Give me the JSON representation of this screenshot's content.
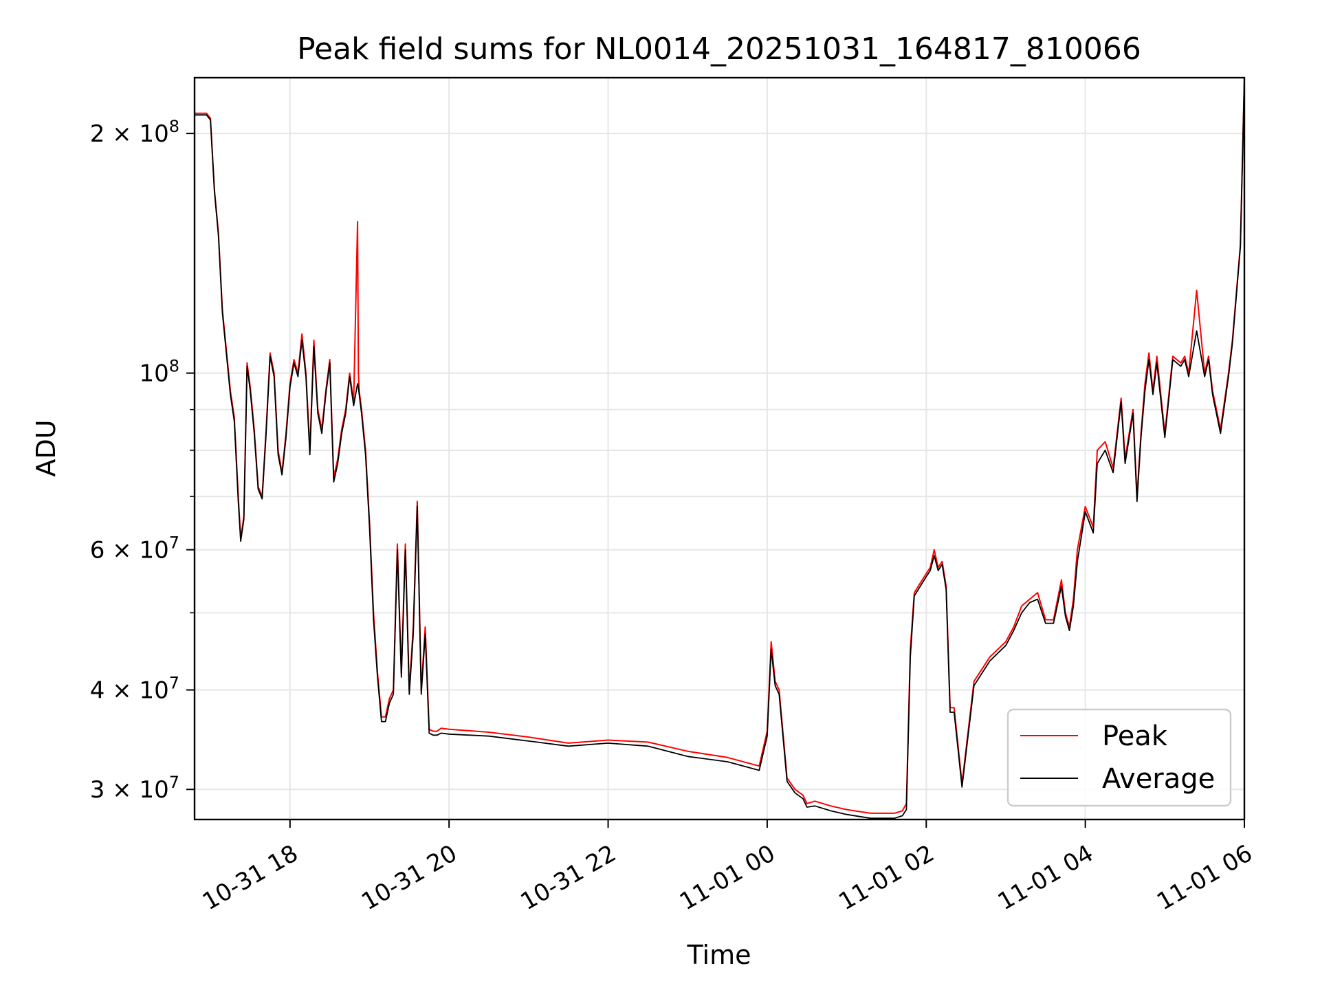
{
  "chart_data": {
    "type": "line",
    "title": "Peak field sums for NL0014_20251031_164817_810066",
    "xlabel": "Time",
    "ylabel": "ADU",
    "yscale": "log",
    "xlim_hours": [
      16.8,
      30.0
    ],
    "ylim": [
      27500000,
      235000000
    ],
    "x_unit": "hours since 2025-10-31 00:00",
    "x_ticks": [
      {
        "value": 18,
        "label": "10-31 18"
      },
      {
        "value": 20,
        "label": "10-31 20"
      },
      {
        "value": 22,
        "label": "10-31 22"
      },
      {
        "value": 24,
        "label": "11-01 00"
      },
      {
        "value": 26,
        "label": "11-01 02"
      },
      {
        "value": 28,
        "label": "11-01 04"
      },
      {
        "value": 30,
        "label": "11-01 06"
      }
    ],
    "y_ticks": [
      {
        "value": 30000000,
        "mant": "3",
        "exp": "7"
      },
      {
        "value": 40000000,
        "mant": "4",
        "exp": "7"
      },
      {
        "value": 60000000,
        "mant": "6",
        "exp": "7"
      },
      {
        "value": 100000000,
        "mant": "",
        "exp": "8"
      },
      {
        "value": 200000000,
        "mant": "2",
        "exp": "8"
      }
    ],
    "y_minor_ticks": [
      50000000,
      70000000,
      80000000,
      90000000
    ],
    "legend": {
      "position": "lower-right"
    },
    "series": [
      {
        "name": "Peak",
        "color": "#ff0000",
        "x": [
          16.8,
          16.95,
          17.0,
          17.05,
          17.1,
          17.15,
          17.25,
          17.3,
          17.35,
          17.38,
          17.42,
          17.46,
          17.5,
          17.55,
          17.6,
          17.65,
          17.7,
          17.75,
          17.8,
          17.85,
          17.9,
          17.95,
          18.0,
          18.05,
          18.1,
          18.15,
          18.2,
          18.25,
          18.3,
          18.35,
          18.4,
          18.45,
          18.5,
          18.55,
          18.6,
          18.65,
          18.7,
          18.75,
          18.8,
          18.85,
          18.86,
          18.87,
          18.9,
          18.95,
          19.0,
          19.05,
          19.1,
          19.15,
          19.2,
          19.25,
          19.3,
          19.35,
          19.4,
          19.45,
          19.5,
          19.55,
          19.6,
          19.65,
          19.7,
          19.75,
          19.8,
          19.85,
          19.9,
          20.0,
          20.5,
          21.0,
          21.5,
          22.0,
          22.5,
          23.0,
          23.5,
          23.9,
          24.0,
          24.05,
          24.1,
          24.15,
          24.25,
          24.35,
          24.45,
          24.5,
          24.6,
          24.8,
          25.0,
          25.3,
          25.6,
          25.7,
          25.75,
          25.8,
          25.85,
          25.95,
          26.0,
          26.05,
          26.1,
          26.15,
          26.2,
          26.25,
          26.3,
          26.35,
          26.45,
          26.6,
          26.8,
          27.0,
          27.1,
          27.2,
          27.3,
          27.4,
          27.5,
          27.6,
          27.7,
          27.75,
          27.8,
          27.85,
          27.9,
          28.0,
          28.1,
          28.15,
          28.25,
          28.35,
          28.45,
          28.5,
          28.6,
          28.65,
          28.7,
          28.75,
          28.8,
          28.85,
          28.9,
          29.0,
          29.1,
          29.2,
          29.25,
          29.3,
          29.4,
          29.5,
          29.55,
          29.6,
          29.7,
          29.8,
          29.85,
          29.95,
          30.0
        ],
        "y": [
          212000000,
          212000000,
          209000000,
          170000000,
          150000000,
          120000000,
          95000000,
          88000000,
          70000000,
          62000000,
          66000000,
          103000000,
          96000000,
          85000000,
          72000000,
          70000000,
          85000000,
          106000000,
          100000000,
          80000000,
          75000000,
          84000000,
          97000000,
          104000000,
          100000000,
          112000000,
          100000000,
          80000000,
          110000000,
          90000000,
          85000000,
          95000000,
          104000000,
          74000000,
          78000000,
          85000000,
          90000000,
          100000000,
          92000000,
          155000000,
          100000000,
          95000000,
          90000000,
          80000000,
          65000000,
          50000000,
          42000000,
          37000000,
          37000000,
          39000000,
          40000000,
          61000000,
          42000000,
          61000000,
          40000000,
          48000000,
          69000000,
          40000000,
          48000000,
          35700000,
          35500000,
          35500000,
          35800000,
          35700000,
          35400000,
          34900000,
          34300000,
          34600000,
          34400000,
          33500000,
          32900000,
          32100000,
          35500000,
          46000000,
          41000000,
          40000000,
          31000000,
          30000000,
          29500000,
          28800000,
          29000000,
          28600000,
          28300000,
          28000000,
          28000000,
          28200000,
          28800000,
          45000000,
          53000000,
          55000000,
          56000000,
          57000000,
          60000000,
          57000000,
          58000000,
          54000000,
          38000000,
          38000000,
          30500000,
          41000000,
          44000000,
          46000000,
          48000000,
          51000000,
          52000000,
          53000000,
          49000000,
          49000000,
          55000000,
          50000000,
          48000000,
          52000000,
          60000000,
          68000000,
          64000000,
          80000000,
          82000000,
          76000000,
          93000000,
          78000000,
          90000000,
          70000000,
          84000000,
          97000000,
          106000000,
          95000000,
          105000000,
          84000000,
          105000000,
          103000000,
          105000000,
          100000000,
          127000000,
          100000000,
          105000000,
          95000000,
          85000000,
          100000000,
          110000000,
          145000000,
          235000000
        ]
      },
      {
        "name": "Average",
        "color": "#000000",
        "x": [
          16.8,
          16.95,
          17.0,
          17.05,
          17.1,
          17.15,
          17.25,
          17.3,
          17.35,
          17.38,
          17.42,
          17.46,
          17.5,
          17.55,
          17.6,
          17.65,
          17.7,
          17.75,
          17.8,
          17.85,
          17.9,
          17.95,
          18.0,
          18.05,
          18.1,
          18.15,
          18.2,
          18.25,
          18.3,
          18.35,
          18.4,
          18.45,
          18.5,
          18.55,
          18.6,
          18.65,
          18.7,
          18.75,
          18.8,
          18.85,
          18.86,
          18.87,
          18.9,
          18.95,
          19.0,
          19.05,
          19.1,
          19.15,
          19.2,
          19.25,
          19.3,
          19.35,
          19.4,
          19.45,
          19.5,
          19.55,
          19.6,
          19.65,
          19.7,
          19.75,
          19.8,
          19.85,
          19.9,
          20.0,
          20.5,
          21.0,
          21.5,
          22.0,
          22.5,
          23.0,
          23.5,
          23.9,
          24.0,
          24.05,
          24.1,
          24.15,
          24.25,
          24.35,
          24.45,
          24.5,
          24.6,
          24.8,
          25.0,
          25.3,
          25.6,
          25.7,
          25.75,
          25.8,
          25.85,
          25.95,
          26.0,
          26.05,
          26.1,
          26.15,
          26.2,
          26.25,
          26.3,
          26.35,
          26.45,
          26.6,
          26.8,
          27.0,
          27.1,
          27.2,
          27.3,
          27.4,
          27.5,
          27.6,
          27.7,
          27.75,
          27.8,
          27.85,
          27.9,
          28.0,
          28.1,
          28.15,
          28.25,
          28.35,
          28.45,
          28.5,
          28.6,
          28.65,
          28.7,
          28.75,
          28.8,
          28.85,
          28.9,
          29.0,
          29.1,
          29.2,
          29.25,
          29.3,
          29.4,
          29.5,
          29.55,
          29.6,
          29.7,
          29.8,
          29.85,
          29.95,
          30.0
        ],
        "y": [
          211000000,
          211000000,
          208000000,
          169000000,
          149000000,
          119000000,
          94000000,
          87000000,
          69000000,
          61500000,
          65500000,
          102000000,
          95000000,
          84000000,
          71500000,
          69500000,
          84000000,
          105000000,
          99000000,
          79000000,
          74500000,
          83000000,
          96000000,
          103000000,
          99000000,
          110000000,
          99000000,
          79000000,
          108000000,
          89000000,
          84000000,
          94000000,
          103000000,
          73000000,
          77000000,
          84000000,
          89000000,
          99000000,
          91000000,
          97000000,
          96000000,
          94000000,
          89000000,
          79000000,
          64000000,
          49000000,
          41500000,
          36500000,
          36500000,
          38500000,
          39500000,
          60000000,
          41500000,
          60000000,
          39500000,
          47000000,
          68000000,
          39500000,
          47000000,
          35300000,
          35100000,
          35100000,
          35300000,
          35200000,
          35000000,
          34500000,
          34000000,
          34300000,
          34000000,
          33000000,
          32500000,
          31700000,
          35000000,
          45000000,
          40500000,
          39500000,
          30700000,
          29700000,
          29200000,
          28500000,
          28600000,
          28200000,
          27900000,
          27600000,
          27600000,
          27800000,
          28300000,
          44000000,
          52500000,
          54500000,
          55500000,
          56500000,
          59000000,
          56500000,
          57500000,
          53500000,
          37500000,
          37500000,
          30200000,
          40500000,
          43500000,
          45500000,
          47500000,
          50000000,
          51500000,
          52000000,
          48500000,
          48500000,
          54000000,
          49500000,
          47500000,
          51000000,
          58000000,
          67000000,
          63000000,
          77000000,
          80000000,
          75000000,
          92000000,
          77000000,
          89000000,
          69000000,
          83000000,
          95000000,
          104000000,
          94000000,
          103000000,
          83000000,
          104000000,
          102000000,
          104000000,
          99000000,
          113000000,
          99000000,
          104000000,
          94000000,
          84000000,
          99000000,
          109000000,
          144000000,
          235000000
        ]
      }
    ]
  }
}
